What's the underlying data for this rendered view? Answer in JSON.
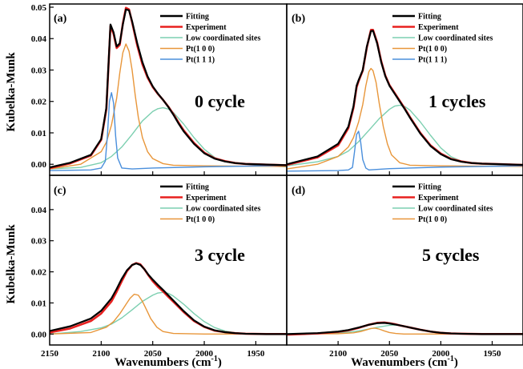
{
  "figure": {
    "xlabel_main": "Wavenumbers (cm",
    "xlabel_sup": "-1",
    "xlabel_end": ")",
    "ylabel": "Kubelka-Munk"
  },
  "colors": {
    "Fitting": "#000000",
    "Experiment": "#e8201f",
    "Low coordinated sites": "#7ccfb0",
    "Pt(1 0 0)": "#e8963a",
    "Pt(1 1 1)": "#4a8fdc"
  },
  "chart_data": [
    {
      "type": "line",
      "panel_label": "(a)",
      "annotation": "0 cycle",
      "xlim": [
        2150,
        1920
      ],
      "ylim": [
        -0.003,
        0.05
      ],
      "x_ticks": [],
      "y_ticks": [
        "0.00",
        "0.01",
        "0.02",
        "0.03",
        "0.04",
        "0.05"
      ],
      "legend": [
        "Fitting",
        "Experiment",
        "Low coordinated sites",
        "Pt(1 0 0)",
        "Pt(1 1 1)"
      ],
      "series": [
        {
          "name": "Fitting",
          "x": [
            2150,
            2130,
            2110,
            2100,
            2095,
            2091,
            2088,
            2085,
            2082,
            2079,
            2076,
            2073,
            2070,
            2065,
            2060,
            2055,
            2050,
            2045,
            2040,
            2035,
            2030,
            2025,
            2020,
            2010,
            2000,
            1990,
            1980,
            1970,
            1960,
            1950,
            1940,
            1920
          ],
          "y": [
            -0.001,
            0.0005,
            0.003,
            0.008,
            0.018,
            0.0445,
            0.042,
            0.0375,
            0.0385,
            0.0445,
            0.0493,
            0.049,
            0.0455,
            0.0385,
            0.0325,
            0.028,
            0.0248,
            0.0225,
            0.0205,
            0.0183,
            0.0158,
            0.013,
            0.0105,
            0.0065,
            0.0035,
            0.0018,
            0.0009,
            0.0004,
            0.0001,
            0.0,
            -0.0001,
            -0.0003
          ]
        },
        {
          "name": "Experiment",
          "x": [
            2150,
            2130,
            2110,
            2100,
            2095,
            2091,
            2088,
            2085,
            2082,
            2079,
            2076,
            2073,
            2070,
            2065,
            2060,
            2055,
            2050,
            2045,
            2040,
            2035,
            2030,
            2025,
            2020,
            2010,
            2000,
            1990,
            1980,
            1970,
            1960,
            1950,
            1940,
            1920
          ],
          "y": [
            -0.0012,
            0.0003,
            0.0028,
            0.0078,
            0.0175,
            0.044,
            0.0415,
            0.037,
            0.038,
            0.0448,
            0.0498,
            0.0493,
            0.0452,
            0.0378,
            0.0318,
            0.0276,
            0.0246,
            0.0224,
            0.0205,
            0.0184,
            0.016,
            0.0133,
            0.0108,
            0.0068,
            0.0037,
            0.0019,
            0.001,
            0.0004,
            0.0001,
            0.0,
            -0.0001,
            -0.0003
          ]
        },
        {
          "name": "Low coordinated sites",
          "x": [
            2150,
            2120,
            2100,
            2090,
            2080,
            2070,
            2060,
            2050,
            2045,
            2040,
            2035,
            2030,
            2020,
            2010,
            2000,
            1990,
            1980,
            1970,
            1960,
            1950,
            1920
          ],
          "y": [
            -0.0015,
            -0.001,
            0.0005,
            0.0025,
            0.0055,
            0.0095,
            0.0138,
            0.0168,
            0.0177,
            0.018,
            0.0176,
            0.0165,
            0.0128,
            0.0085,
            0.0048,
            0.0022,
            0.0008,
            0.0002,
            0.0,
            -0.0003,
            -0.0008
          ]
        },
        {
          "name": "Pt(1 0 0)",
          "x": [
            2150,
            2120,
            2100,
            2095,
            2090,
            2085,
            2082,
            2079,
            2076,
            2073,
            2070,
            2067,
            2064,
            2060,
            2055,
            2050,
            2040,
            2030,
            2000,
            1920
          ],
          "y": [
            -0.0015,
            0.0,
            0.004,
            0.007,
            0.0125,
            0.021,
            0.029,
            0.0355,
            0.0383,
            0.036,
            0.03,
            0.022,
            0.015,
            0.0085,
            0.004,
            0.0018,
            0.0002,
            -0.0003,
            -0.0005,
            -0.0007
          ]
        },
        {
          "name": "Pt(1 1 1)",
          "x": [
            2150,
            2110,
            2100,
            2096,
            2094,
            2092,
            2090,
            2088,
            2086,
            2084,
            2080,
            2070,
            2050,
            2000,
            1920
          ],
          "y": [
            -0.002,
            -0.0018,
            -0.0012,
            0.001,
            0.009,
            0.02,
            0.0228,
            0.0195,
            0.009,
            0.002,
            -0.0012,
            -0.0015,
            -0.0012,
            -0.0008,
            -0.0004
          ]
        }
      ]
    },
    {
      "type": "line",
      "panel_label": "(b)",
      "annotation": "1 cycles",
      "xlim": [
        2150,
        1920
      ],
      "ylim": [
        -0.003,
        0.05
      ],
      "x_ticks": [],
      "y_ticks": [],
      "legend": [
        "Fitting",
        "Experiment",
        "Low coordinated sites",
        "Pt(1 0 0)",
        "Pt(1 1 1)"
      ],
      "series": [
        {
          "name": "Fitting",
          "x": [
            2150,
            2120,
            2100,
            2090,
            2085,
            2082,
            2080,
            2076,
            2072,
            2068,
            2066,
            2062,
            2058,
            2054,
            2050,
            2045,
            2040,
            2035,
            2030,
            2020,
            2010,
            2000,
            1990,
            1980,
            1970,
            1960,
            1940,
            1920
          ],
          "y": [
            0.0,
            0.0025,
            0.0065,
            0.012,
            0.0185,
            0.025,
            0.0268,
            0.03,
            0.0375,
            0.0424,
            0.0425,
            0.0385,
            0.0325,
            0.028,
            0.025,
            0.0225,
            0.02,
            0.0175,
            0.0148,
            0.0098,
            0.0058,
            0.0032,
            0.0016,
            0.0008,
            0.0004,
            0.0002,
            0.0,
            -0.0002
          ]
        },
        {
          "name": "Experiment",
          "x": [
            2150,
            2120,
            2100,
            2090,
            2085,
            2082,
            2080,
            2076,
            2072,
            2068,
            2066,
            2062,
            2058,
            2054,
            2050,
            2045,
            2040,
            2035,
            2030,
            2020,
            2010,
            2000,
            1990,
            1980,
            1970,
            1960,
            1940,
            1920
          ],
          "y": [
            -0.0002,
            0.0022,
            0.006,
            0.0115,
            0.018,
            0.0245,
            0.0265,
            0.0298,
            0.0372,
            0.0428,
            0.0428,
            0.0388,
            0.0328,
            0.0282,
            0.0252,
            0.0227,
            0.0202,
            0.0177,
            0.015,
            0.01,
            0.006,
            0.0034,
            0.0017,
            0.0009,
            0.0004,
            0.0002,
            0.0,
            -0.0002
          ]
        },
        {
          "name": "Low coordinated sites",
          "x": [
            2150,
            2120,
            2100,
            2090,
            2080,
            2070,
            2060,
            2050,
            2045,
            2040,
            2035,
            2030,
            2020,
            2010,
            2000,
            1990,
            1980,
            1970,
            1960,
            1950,
            1940,
            1920
          ],
          "y": [
            -0.0005,
            0.0008,
            0.0025,
            0.0042,
            0.0072,
            0.0108,
            0.0145,
            0.0175,
            0.0185,
            0.0188,
            0.0184,
            0.0172,
            0.0135,
            0.0092,
            0.0052,
            0.0024,
            0.001,
            0.0003,
            0.0,
            -0.0001,
            -0.0002,
            -0.0004
          ]
        },
        {
          "name": "Pt(1 0 0)",
          "x": [
            2150,
            2120,
            2100,
            2090,
            2085,
            2080,
            2076,
            2073,
            2070,
            2068,
            2066,
            2063,
            2060,
            2056,
            2052,
            2048,
            2040,
            2030,
            2000,
            1920
          ],
          "y": [
            -0.0015,
            0.0,
            0.0025,
            0.0055,
            0.0085,
            0.0135,
            0.019,
            0.025,
            0.0295,
            0.0305,
            0.0298,
            0.026,
            0.0195,
            0.012,
            0.0065,
            0.003,
            0.0005,
            -0.0003,
            -0.0005,
            -0.0007
          ]
        },
        {
          "name": "Pt(1 1 1)",
          "x": [
            2150,
            2100,
            2090,
            2086,
            2084,
            2082,
            2080,
            2078,
            2076,
            2073,
            2070,
            2050,
            2000,
            1920
          ],
          "y": [
            -0.0022,
            -0.002,
            -0.0018,
            -0.001,
            0.004,
            0.0095,
            0.0105,
            0.007,
            0.0015,
            -0.0012,
            -0.0018,
            -0.0014,
            -0.0009,
            -0.0005
          ]
        }
      ]
    },
    {
      "type": "line",
      "panel_label": "(c)",
      "annotation": "3 cycle",
      "xlim": [
        2150,
        1920
      ],
      "ylim": [
        -0.003,
        0.05
      ],
      "x_ticks": [
        "2150",
        "2100",
        "2050",
        "2000",
        "1950"
      ],
      "y_ticks": [
        "0.00",
        "0.01",
        "0.02",
        "0.03",
        "0.04"
      ],
      "legend": [
        "Fitting",
        "Experiment",
        "Low coordinated sites",
        "Pt(1 0 0)"
      ],
      "series": [
        {
          "name": "Fitting",
          "x": [
            2150,
            2130,
            2110,
            2100,
            2090,
            2085,
            2080,
            2075,
            2070,
            2066,
            2062,
            2058,
            2054,
            2050,
            2045,
            2040,
            2035,
            2030,
            2020,
            2010,
            2000,
            1990,
            1980,
            1970,
            1960,
            1940,
            1920
          ],
          "y": [
            0.001,
            0.0025,
            0.005,
            0.0075,
            0.0115,
            0.0145,
            0.0178,
            0.0205,
            0.0222,
            0.0227,
            0.0222,
            0.0208,
            0.019,
            0.0175,
            0.0158,
            0.0142,
            0.0125,
            0.0108,
            0.0074,
            0.0044,
            0.0024,
            0.0012,
            0.0006,
            0.0003,
            0.0001,
            0.0,
            0.0
          ]
        },
        {
          "name": "Experiment",
          "x": [
            2150,
            2130,
            2110,
            2100,
            2090,
            2085,
            2080,
            2075,
            2070,
            2066,
            2062,
            2058,
            2054,
            2050,
            2045,
            2040,
            2035,
            2030,
            2020,
            2010,
            2000,
            1990,
            1980,
            1970,
            1960,
            1940,
            1920
          ],
          "y": [
            0.0005,
            0.0018,
            0.0042,
            0.0066,
            0.0105,
            0.0136,
            0.017,
            0.0202,
            0.0222,
            0.0228,
            0.0224,
            0.0208,
            0.0188,
            0.017,
            0.0152,
            0.0137,
            0.012,
            0.0104,
            0.0071,
            0.0042,
            0.0023,
            0.0011,
            0.0006,
            0.0003,
            0.0001,
            0.0,
            0.0
          ]
        },
        {
          "name": "Low coordinated sites",
          "x": [
            2150,
            2120,
            2100,
            2090,
            2080,
            2070,
            2060,
            2050,
            2045,
            2040,
            2035,
            2030,
            2020,
            2010,
            2000,
            1990,
            1980,
            1970,
            1960,
            1940,
            1920
          ],
          "y": [
            0.0,
            0.0008,
            0.002,
            0.0032,
            0.0052,
            0.0078,
            0.0105,
            0.0125,
            0.0132,
            0.0134,
            0.0131,
            0.0122,
            0.0096,
            0.0066,
            0.004,
            0.0021,
            0.001,
            0.0004,
            0.0001,
            0.0,
            -0.0001
          ]
        },
        {
          "name": "Pt(1 0 0)",
          "x": [
            2150,
            2110,
            2095,
            2088,
            2082,
            2076,
            2072,
            2068,
            2064,
            2060,
            2056,
            2052,
            2046,
            2040,
            2030,
            2000,
            1920
          ],
          "y": [
            0.0,
            0.0005,
            0.0022,
            0.004,
            0.0065,
            0.0095,
            0.0115,
            0.0128,
            0.0125,
            0.0105,
            0.0078,
            0.005,
            0.0022,
            0.0008,
            0.0002,
            0.0,
            0.0
          ]
        }
      ]
    },
    {
      "type": "line",
      "panel_label": "(d)",
      "annotation": "5 cycles",
      "xlim": [
        2150,
        1920
      ],
      "ylim": [
        -0.003,
        0.05
      ],
      "x_ticks": [
        "2100",
        "2050",
        "2000",
        "1950"
      ],
      "y_ticks": [],
      "legend": [
        "Fitting",
        "Experiment",
        "Low coordinated sites",
        "Pt(1 0 0)"
      ],
      "series": [
        {
          "name": "Fitting",
          "x": [
            2150,
            2120,
            2100,
            2090,
            2080,
            2070,
            2062,
            2055,
            2050,
            2045,
            2040,
            2030,
            2020,
            2010,
            2000,
            1990,
            1980,
            1960,
            1940,
            1920
          ],
          "y": [
            0.0,
            0.0003,
            0.0008,
            0.0013,
            0.0021,
            0.003,
            0.0035,
            0.0036,
            0.0034,
            0.0031,
            0.0028,
            0.0021,
            0.0014,
            0.0008,
            0.0004,
            0.0002,
            0.0001,
            0.0,
            0.0,
            0.0
          ]
        },
        {
          "name": "Experiment",
          "x": [
            2150,
            2120,
            2100,
            2090,
            2080,
            2070,
            2062,
            2055,
            2050,
            2045,
            2040,
            2030,
            2020,
            2010,
            2000,
            1990,
            1980,
            1960,
            1940,
            1920
          ],
          "y": [
            -0.0002,
            0.0002,
            0.0007,
            0.0012,
            0.002,
            0.003,
            0.0036,
            0.0037,
            0.0035,
            0.0032,
            0.0028,
            0.0021,
            0.0014,
            0.0008,
            0.0004,
            0.0002,
            0.0001,
            0.0,
            0.0,
            0.0
          ]
        },
        {
          "name": "Low coordinated sites",
          "x": [
            2150,
            2110,
            2090,
            2080,
            2070,
            2060,
            2050,
            2045,
            2040,
            2035,
            2030,
            2020,
            2010,
            2000,
            1990,
            1970,
            1950,
            1920
          ],
          "y": [
            0.0,
            0.0002,
            0.0006,
            0.001,
            0.0016,
            0.0023,
            0.0028,
            0.0029,
            0.0028,
            0.0026,
            0.0022,
            0.0015,
            0.0009,
            0.0005,
            0.0002,
            0.0,
            0.0,
            0.0
          ]
        },
        {
          "name": "Pt(1 0 0)",
          "x": [
            2150,
            2100,
            2085,
            2078,
            2072,
            2068,
            2064,
            2060,
            2055,
            2050,
            2044,
            2036,
            2020,
            1980,
            1920
          ],
          "y": [
            0.0,
            0.0001,
            0.0004,
            0.0008,
            0.0014,
            0.0018,
            0.0019,
            0.0016,
            0.001,
            0.0005,
            0.0002,
            0.0,
            0.0,
            0.0,
            0.0
          ]
        }
      ]
    }
  ]
}
